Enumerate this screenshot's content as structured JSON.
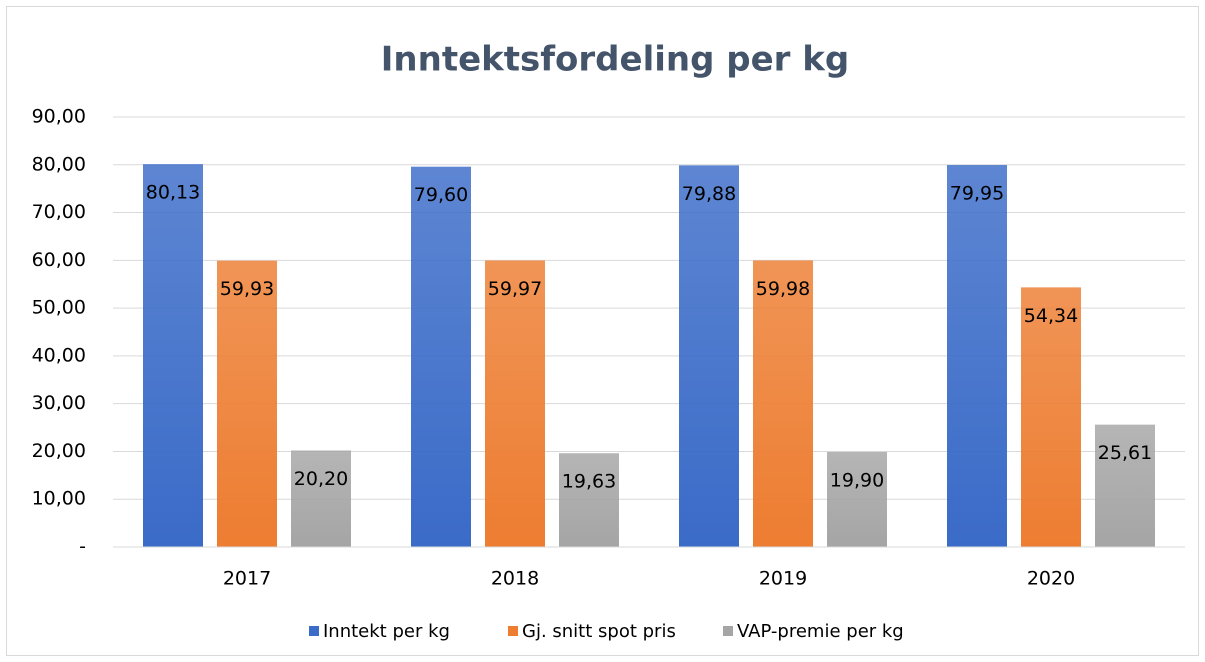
{
  "chart_data": {
    "type": "bar",
    "title": "Inntektsfordeling per kg",
    "categories": [
      "2017",
      "2018",
      "2019",
      "2020"
    ],
    "series": [
      {
        "name": "Inntekt per kg",
        "color": "#3a6bc8",
        "values": [
          80.13,
          79.6,
          79.88,
          79.95
        ],
        "value_labels": [
          "80,13",
          "79,60",
          "79,88",
          "79,95"
        ]
      },
      {
        "name": "Gj. snitt spot pris",
        "color": "#ed7d31",
        "values": [
          59.93,
          59.97,
          59.98,
          54.34
        ],
        "value_labels": [
          "59,93",
          "59,97",
          "59,98",
          "54,34"
        ]
      },
      {
        "name": "VAP-premie per kg",
        "color": "#a5a5a5",
        "values": [
          20.2,
          19.63,
          19.9,
          25.61
        ],
        "value_labels": [
          "20,20",
          "19,63",
          "19,90",
          "25,61"
        ]
      }
    ],
    "ylim": [
      0,
      90
    ],
    "yticks": [
      {
        "value": 0,
        "label": "-"
      },
      {
        "value": 10,
        "label": "10,00"
      },
      {
        "value": 20,
        "label": "20,00"
      },
      {
        "value": 30,
        "label": "30,00"
      },
      {
        "value": 40,
        "label": "40,00"
      },
      {
        "value": 50,
        "label": "50,00"
      },
      {
        "value": 60,
        "label": "60,00"
      },
      {
        "value": 70,
        "label": "70,00"
      },
      {
        "value": 80,
        "label": "80,00"
      },
      {
        "value": 90,
        "label": "90,00"
      }
    ],
    "grid": true,
    "legend": "bottom"
  }
}
